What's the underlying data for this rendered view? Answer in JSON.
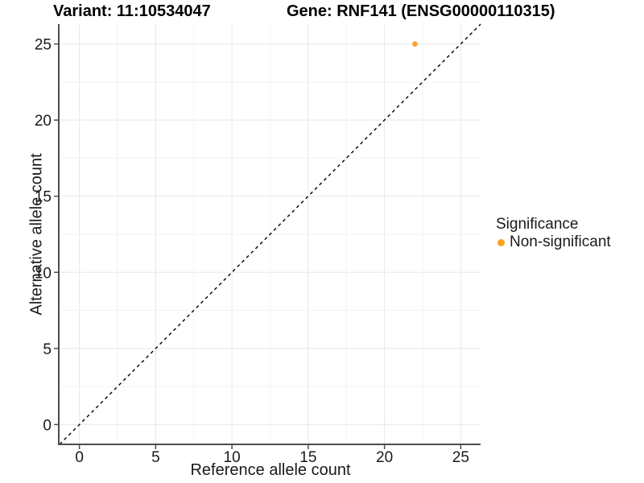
{
  "header": {
    "variant_title": "Variant: 11:10534047",
    "gene_title": "Gene: RNF141 (ENSG00000110315)"
  },
  "legend": {
    "title": "Significance",
    "items": [
      {
        "label": "Non-significant",
        "color": "#FBA224"
      }
    ]
  },
  "chart_data": {
    "type": "scatter",
    "title_left": "Variant: 11:10534047",
    "title_right": "Gene: RNF141 (ENSG00000110315)",
    "xlabel": "Reference allele count",
    "ylabel": "Alternative allele count",
    "xlim": [
      -1.3,
      26.3
    ],
    "ylim": [
      -1.3,
      26.3
    ],
    "x_ticks": [
      0,
      5,
      10,
      15,
      20,
      25
    ],
    "y_ticks": [
      0,
      5,
      10,
      15,
      20,
      25
    ],
    "minor_ticks": [
      2.5,
      7.5,
      12.5,
      17.5,
      22.5
    ],
    "grid": true,
    "legend_position": "right",
    "reference_line": {
      "type": "identity",
      "slope": 1,
      "intercept": 0,
      "style": "dashed",
      "color": "#000000"
    },
    "series": [
      {
        "name": "Non-significant",
        "color": "#FBA224",
        "points": [
          {
            "x": 22,
            "y": 25
          }
        ]
      }
    ]
  },
  "style_colors": {
    "major_grid": "#e8e8e8",
    "minor_grid": "#f3f3f3",
    "axis_line": "#4d4d4d",
    "tick_text": "#1a1a1a"
  }
}
